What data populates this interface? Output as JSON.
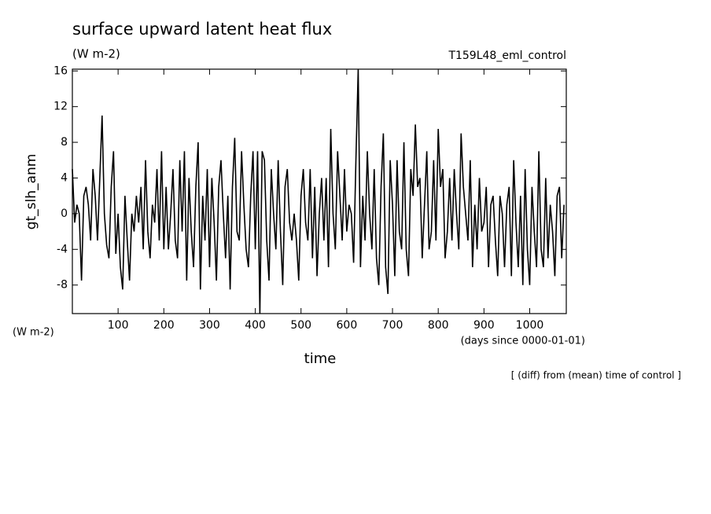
{
  "chart_data": {
    "type": "line",
    "title": "surface upward latent heat flux",
    "subtitle": "(W m-2)",
    "run_label": "T159L48_eml_control",
    "y_label": "gt_slh_anm",
    "y_unit": "(W m-2)",
    "x_label": "time",
    "x_unit": "(days since 0000-01-01)",
    "note": "[ (diff) from (mean) time of control ]",
    "xlim": [
      0,
      1080
    ],
    "ylim": [
      -11.2,
      16.2
    ],
    "xticks": [
      100,
      200,
      300,
      400,
      500,
      600,
      700,
      800,
      900,
      1000
    ],
    "yticks": [
      -8,
      -4,
      0,
      4,
      8,
      12,
      16
    ],
    "x": [
      0,
      5,
      10,
      15,
      20,
      25,
      30,
      35,
      40,
      45,
      50,
      55,
      60,
      65,
      70,
      75,
      80,
      85,
      90,
      95,
      100,
      105,
      110,
      115,
      120,
      125,
      130,
      135,
      140,
      145,
      150,
      155,
      160,
      165,
      170,
      175,
      180,
      185,
      190,
      195,
      200,
      205,
      210,
      215,
      220,
      225,
      230,
      235,
      240,
      245,
      250,
      255,
      260,
      265,
      270,
      275,
      280,
      285,
      290,
      295,
      300,
      305,
      310,
      315,
      320,
      325,
      330,
      335,
      340,
      345,
      350,
      355,
      360,
      365,
      370,
      375,
      380,
      385,
      390,
      395,
      400,
      405,
      410,
      415,
      420,
      425,
      430,
      435,
      440,
      445,
      450,
      455,
      460,
      465,
      470,
      475,
      480,
      485,
      490,
      495,
      500,
      505,
      510,
      515,
      520,
      525,
      530,
      535,
      540,
      545,
      550,
      555,
      560,
      565,
      570,
      575,
      580,
      585,
      590,
      595,
      600,
      605,
      610,
      615,
      620,
      625,
      630,
      635,
      640,
      645,
      650,
      655,
      660,
      665,
      670,
      675,
      680,
      685,
      690,
      695,
      700,
      705,
      710,
      715,
      720,
      725,
      730,
      735,
      740,
      745,
      750,
      755,
      760,
      765,
      770,
      775,
      780,
      785,
      790,
      795,
      800,
      805,
      810,
      815,
      820,
      825,
      830,
      835,
      840,
      845,
      850,
      855,
      860,
      865,
      870,
      875,
      880,
      885,
      890,
      895,
      900,
      905,
      910,
      915,
      920,
      925,
      930,
      935,
      940,
      945,
      950,
      955,
      960,
      965,
      970,
      975,
      980,
      985,
      990,
      995,
      1000,
      1005,
      1010,
      1015,
      1020,
      1025,
      1030,
      1035,
      1040,
      1045,
      1050,
      1055,
      1060,
      1065,
      1070,
      1075
    ],
    "series": [
      {
        "name": "gt_slh_anm",
        "color": "#000000",
        "values": [
          5,
          -1,
          1,
          0,
          -7.5,
          2,
          3,
          1,
          -3,
          5,
          2,
          -3,
          4,
          11,
          0,
          -3.5,
          -5,
          3,
          7,
          -4.5,
          0,
          -6,
          -8.5,
          2,
          -3,
          -7.5,
          0,
          -2,
          2,
          -1,
          3,
          -4,
          6,
          -2,
          -5,
          1,
          -1,
          5,
          -3,
          7,
          -4,
          3,
          -4,
          0,
          5,
          -3,
          -5,
          6,
          -2,
          7,
          -7.5,
          4,
          -2,
          -6,
          3,
          8,
          -8.5,
          2,
          -3,
          5,
          -6,
          4,
          -1,
          -7.5,
          3,
          6,
          0,
          -5,
          2,
          -8.5,
          3,
          8.5,
          -2,
          -3,
          7,
          1,
          -4,
          -6,
          2,
          7,
          -4,
          7,
          -11.2,
          7,
          6,
          -3,
          -7.5,
          5,
          0,
          -4,
          6,
          -2,
          -8,
          3,
          5,
          -1,
          -3,
          0,
          -3,
          -7.5,
          2,
          5,
          -1,
          -3,
          5,
          -5,
          3,
          -7,
          0,
          4,
          -3,
          4,
          -6,
          9.5,
          0,
          -4,
          7,
          2,
          -3,
          5,
          -2,
          1,
          0,
          -5.5,
          6,
          16.2,
          -6,
          2,
          -3,
          7,
          0,
          -4,
          5,
          -5,
          -8,
          3,
          9,
          -6,
          -9,
          6,
          1,
          -7,
          6,
          -2,
          -4,
          8,
          -4,
          -7,
          5,
          2,
          10,
          3,
          4,
          -5,
          1,
          7,
          -4,
          -2,
          6,
          -3,
          9.5,
          3,
          5,
          -5,
          -2,
          4,
          -3,
          5,
          0,
          -4,
          9,
          3,
          0,
          -3,
          6,
          -6,
          1,
          -4,
          4,
          -2,
          -1,
          3,
          -6,
          1,
          2,
          -3,
          -7,
          2,
          0,
          -6,
          1,
          3,
          -7,
          6,
          -1,
          -6,
          2,
          -8,
          5,
          -4,
          -8,
          3,
          -2,
          -6,
          7,
          -4,
          -6,
          4,
          -5,
          1,
          -2,
          -7,
          2,
          3,
          -5,
          1
        ]
      }
    ]
  }
}
